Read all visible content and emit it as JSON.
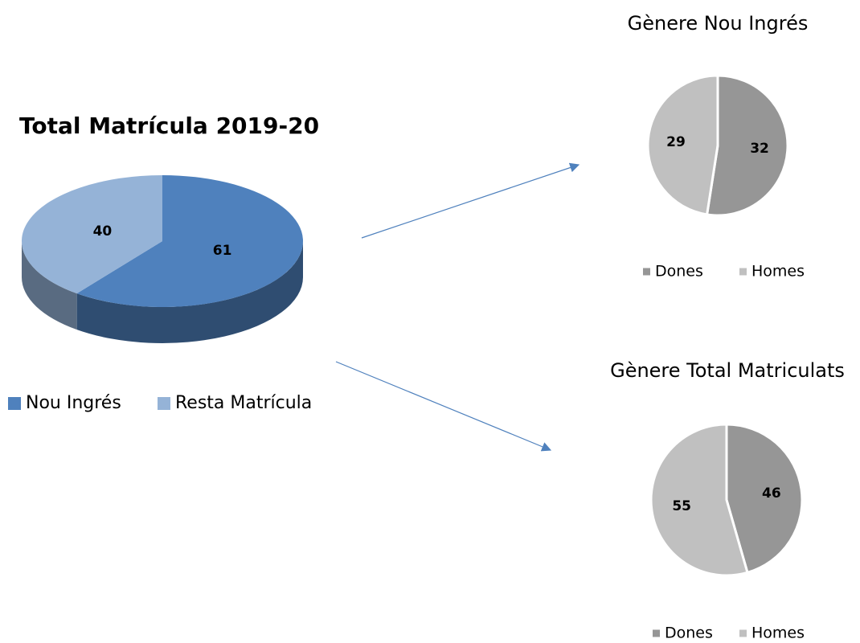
{
  "chart_data": [
    {
      "type": "pie3d",
      "title": "Total Matrícula 2019-20",
      "categories": [
        "Nou Ingrés",
        "Resta Matrícula"
      ],
      "values": [
        61,
        40
      ],
      "colors": [
        "#4f81bd",
        "#95b3d7"
      ],
      "legend": "bottom"
    },
    {
      "type": "pie",
      "title": "Gènere Nou Ingrés",
      "categories": [
        "Dones",
        "Homes"
      ],
      "values": [
        32,
        29
      ],
      "colors": [
        "#969696",
        "#c0c0c0"
      ],
      "legend": "bottom"
    },
    {
      "type": "pie",
      "title": "Gènere Total Matriculats",
      "categories": [
        "Dones",
        "Homes"
      ],
      "values": [
        46,
        55
      ],
      "colors": [
        "#969696",
        "#c0c0c0"
      ],
      "legend": "bottom"
    }
  ]
}
